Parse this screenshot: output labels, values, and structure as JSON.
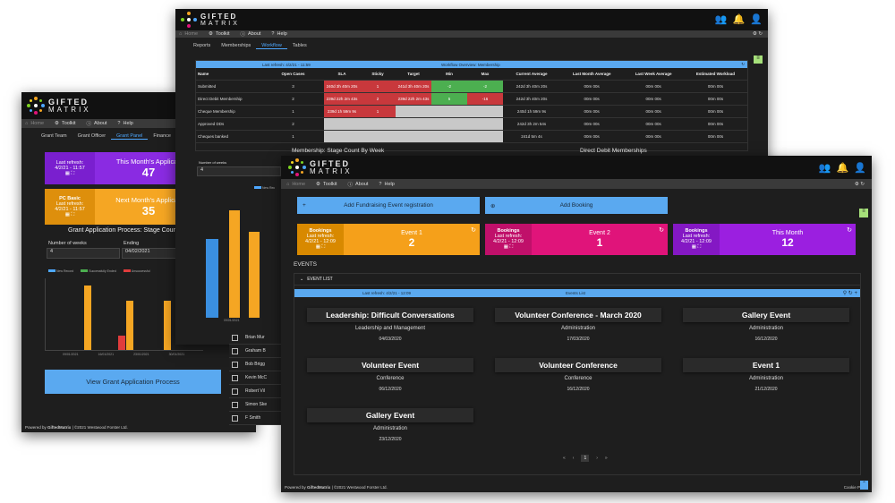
{
  "brand": {
    "line1": "GIFTED",
    "line2": "MATRIX"
  },
  "nav": {
    "home": "Home",
    "toolkit": "Toolkit",
    "about": "About",
    "help": "Help"
  },
  "back": {
    "tabs": [
      "Grant Team",
      "Grant Officer",
      "Grant Panel",
      "Finance",
      "Ar"
    ],
    "tile1": {
      "refresh_label": "Last refresh:",
      "refresh_time": "4/2/21 - 11:57",
      "title": "This Month's Applicati",
      "value": "47",
      "color": "#8a2be2"
    },
    "tile2": {
      "name": "PC Basic",
      "refresh_label": "Last refresh:",
      "refresh_time": "4/2/21 - 11:57",
      "title": "Next Month's Applicati",
      "value": "35",
      "color": "#f5a623"
    },
    "section_title": "Grant Application Process: Stage Count B",
    "weeks_label": "Number of weeks",
    "weeks_value": "4",
    "ending_label": "Ending",
    "ending_value": "04/02/2021",
    "legend": [
      "New Record",
      "Successfully Ended",
      "Unsuccessful"
    ],
    "x_labels": [
      "09/01/2021",
      "16/01/2021",
      "23/01/2021",
      "30/01/2021"
    ],
    "cta": "View Grant Application Process",
    "footer_prefix": "Powered by",
    "footer_brand": "GiftedMatrix",
    "footer_suffix": "| ©2021 Westwood Forster Ltd."
  },
  "middle": {
    "tabs": [
      "Reports",
      "Memberships",
      "Workflow",
      "Tables"
    ],
    "table_refresh": "Last refresh: 4/2/21 - 11:59",
    "table_title": "Workflow Overview: Membership",
    "headers": [
      "Name",
      "Open Cases",
      "SLA",
      "Sticky",
      "Target",
      "Min",
      "Max",
      "Current Average",
      "Last Month Average",
      "Last Week Average",
      "Estimated Workload"
    ],
    "rows": [
      [
        "Submitted",
        "3",
        "240d 3h 40m 20s",
        "1",
        "241d 3h 40m 20s",
        "-2",
        "-2",
        "242d 3h 40m 20s",
        "00m 00s",
        "00m 00s",
        "00m 00s"
      ],
      [
        "Direct Debit Membership",
        "2",
        "239d 22h 2m 43s",
        "2",
        "239d 22h 2m 43s",
        "5",
        "-16",
        "242d 3h 40m 20s",
        "00m 00s",
        "00m 00s",
        "00m 00s"
      ],
      [
        "Cheque Membership",
        "1",
        "239d 1h 59m 9s",
        "1",
        "",
        "",
        "",
        "240d 1h 59m 9s",
        "00m 00s",
        "00m 00s",
        "00m 00s"
      ],
      [
        "Approved DDs",
        "2",
        "",
        "",
        "",
        "",
        "",
        "242d 3h 2m 54s",
        "00m 00s",
        "00m 00s",
        "00m 00s"
      ],
      [
        "Cheques banked",
        "1",
        "",
        "",
        "",
        "",
        "",
        "241d 5m 4s",
        "00m 00s",
        "00m 00s",
        "00m 00s"
      ]
    ],
    "caption_left": "Membership: Stage Count By Week",
    "caption_right": "Direct Debit Memberships",
    "weeks_label": "Number of weeks",
    "weeks_value": "4",
    "legend": [
      "New Rec"
    ],
    "x_label": "09/01/2021",
    "people": [
      "Brian Mur",
      "Graham B",
      "Bob Brigg",
      "Kevin McC",
      "Robert Vil",
      "Simon Ske",
      "F Smith"
    ]
  },
  "front": {
    "add_event": "Add Fundraising Event registration",
    "add_booking": "Add Booking",
    "tiles": [
      {
        "name": "Bookings",
        "refresh_label": "Last refresh:",
        "refresh_time": "4/2/21 - 12:09",
        "title": "Event 1",
        "value": "2",
        "color": "#f5a01a",
        "dark": "#d88900"
      },
      {
        "name": "Bookings",
        "refresh_label": "Last refresh:",
        "refresh_time": "4/2/21 - 12:09",
        "title": "Event 2",
        "value": "1",
        "color": "#e0147a",
        "dark": "#c0106a"
      },
      {
        "name": "Bookings",
        "refresh_label": "Last refresh:",
        "refresh_time": "4/2/21 - 12:09",
        "title": "This Month",
        "value": "12",
        "color": "#9b1fe0",
        "dark": "#8418c4"
      }
    ],
    "events_heading": "EVENTS",
    "event_list_label": "EVENT LIST",
    "list_refresh": "Last refresh: 4/2/21 - 12:09",
    "list_title": "Events List",
    "events": [
      {
        "title": "Leadership: Difficult Conversations",
        "category": "Leadership and Management",
        "date": "04/03/2020"
      },
      {
        "title": "Volunteer Conference - March 2020",
        "category": "Administration",
        "date": "17/03/2020"
      },
      {
        "title": "Gallery Event",
        "category": "Administration",
        "date": "16/12/2020"
      },
      {
        "title": "Volunteer Event",
        "category": "Conference",
        "date": "06/12/2020"
      },
      {
        "title": "Volunteer Conference",
        "category": "Conference",
        "date": "16/12/2020"
      },
      {
        "title": "Event 1",
        "category": "Administration",
        "date": "21/12/2020"
      },
      {
        "title": "Gallery Event",
        "category": "Administration",
        "date": "23/12/2020"
      }
    ],
    "pager": {
      "first": "«",
      "prev": "‹",
      "page": "1",
      "next": "›",
      "last": "»"
    },
    "footer_prefix": "Powered by",
    "footer_brand": "GiftedMatrix",
    "footer_suffix": "| ©2021 Westwood Forster Ltd.",
    "cookie": "Cookie Policy"
  },
  "colors": {
    "accent": "#5aa9f0",
    "green": "#7ed321",
    "orange": "#f5a623",
    "purple": "#8a2be2"
  }
}
